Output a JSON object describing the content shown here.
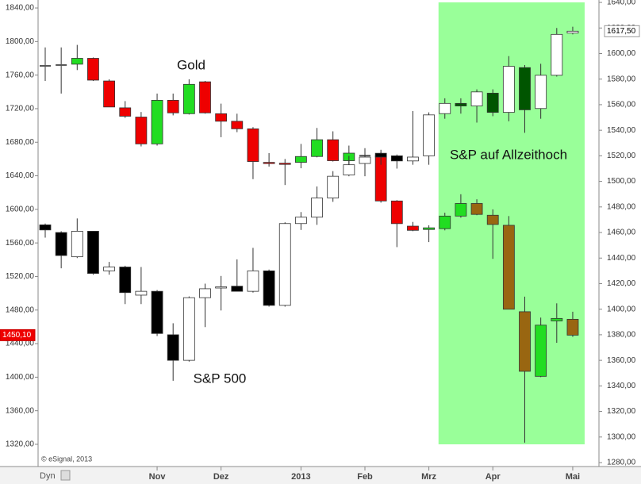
{
  "chart_data": {
    "type": "candlestick",
    "categories": [
      null,
      null,
      null,
      null,
      null,
      null,
      null,
      "Nov",
      null,
      null,
      null,
      "Dez",
      null,
      null,
      null,
      null,
      "2013",
      null,
      null,
      null,
      "Feb",
      null,
      null,
      null,
      "Mrz",
      null,
      null,
      null,
      "Apr",
      null,
      null,
      null,
      null,
      "Mai"
    ],
    "ylim": [
      1293.5,
      1849.5
    ],
    "yticks": [
      {
        "value": 1320,
        "label": "1320,00"
      },
      {
        "value": 1360,
        "label": "1360,00"
      },
      {
        "value": 1400,
        "label": "1400,00"
      },
      {
        "value": 1440,
        "label": "1440,00"
      },
      {
        "value": 1480,
        "label": "1480,00"
      },
      {
        "value": 1520,
        "label": "1520,00"
      },
      {
        "value": 1560,
        "label": "1560,00"
      },
      {
        "value": 1600,
        "label": "1600,00"
      },
      {
        "value": 1640,
        "label": "1640,00"
      },
      {
        "value": 1680,
        "label": "1680,00"
      },
      {
        "value": 1720,
        "label": "1720,00"
      },
      {
        "value": 1760,
        "label": "1760,00"
      },
      {
        "value": 1800,
        "label": "1800,00"
      },
      {
        "value": 1840,
        "label": "1840,00"
      }
    ],
    "y2lim": [
      1276.9,
      1641.9
    ],
    "y2ticks": [
      {
        "value": 1280,
        "label": "1280,00"
      },
      {
        "value": 1300,
        "label": "1300,00"
      },
      {
        "value": 1320,
        "label": "1320,00"
      },
      {
        "value": 1340,
        "label": "1340,00"
      },
      {
        "value": 1360,
        "label": "1360,00"
      },
      {
        "value": 1380,
        "label": "1380,00"
      },
      {
        "value": 1400,
        "label": "1400,00"
      },
      {
        "value": 1420,
        "label": "1420,00"
      },
      {
        "value": 1440,
        "label": "1440,00"
      },
      {
        "value": 1460,
        "label": "1460,00"
      },
      {
        "value": 1480,
        "label": "1480,00"
      },
      {
        "value": 1500,
        "label": "1500,00"
      },
      {
        "value": 1520,
        "label": "1520,00"
      },
      {
        "value": 1540,
        "label": "1540,00"
      },
      {
        "value": 1560,
        "label": "1560,00"
      },
      {
        "value": 1580,
        "label": "1580,00"
      },
      {
        "value": 1600,
        "label": "1600,00"
      },
      {
        "value": 1620,
        "label": "1620,00"
      },
      {
        "value": 1640,
        "label": "1640,00"
      }
    ],
    "highlight": {
      "label": "S&P auf Allzeithoch",
      "color": "#99ff99",
      "from": 25
    },
    "series": [
      {
        "name": "Gold",
        "axis": "y",
        "up_color": "#22dd22",
        "down_color": "#ee0000",
        "highlight_up_color": "#22dd22",
        "highlight_down_color": "#996611",
        "doji_color": "#555555",
        "last_label": "1450,10",
        "last_label_color": "#ee0000",
        "open": [
          1771,
          1772,
          1773,
          1780,
          1753,
          1721,
          1710,
          1678,
          1730,
          1714,
          1752,
          1714,
          1705,
          1696,
          1656,
          1655,
          1656,
          1663,
          1683,
          1658,
          1664,
          1664,
          1610,
          1580,
          1576,
          1577,
          1592,
          1607,
          1593,
          1581,
          1478,
          1401,
          1467,
          1469
        ],
        "high": [
          1793,
          1793,
          1796,
          1781,
          1755,
          1729,
          1716,
          1738,
          1738,
          1755,
          1753,
          1726,
          1714,
          1698,
          1667,
          1660,
          1678,
          1697,
          1693,
          1676,
          1668,
          1671,
          1611,
          1585,
          1581,
          1596,
          1618,
          1612,
          1600,
          1592,
          1496,
          1471,
          1488,
          1478
        ],
        "low": [
          1753,
          1738,
          1766,
          1753,
          1722,
          1709,
          1675,
          1676,
          1712,
          1713,
          1714,
          1686,
          1692,
          1636,
          1651,
          1629,
          1649,
          1662,
          1657,
          1644,
          1651,
          1608,
          1555,
          1574,
          1561,
          1575,
          1590,
          1593,
          1541,
          1481,
          1322,
          1400,
          1441,
          1448
        ],
        "close": [
          1771,
          1772,
          1780,
          1754,
          1722,
          1711,
          1678,
          1730,
          1715,
          1749,
          1715,
          1705,
          1696,
          1657,
          1655,
          1654,
          1663,
          1683,
          1658,
          1667,
          1664,
          1610,
          1583,
          1575,
          1578,
          1592,
          1607,
          1594,
          1582,
          1481,
          1407,
          1462,
          1470,
          1450.1
        ]
      },
      {
        "name": "S&P 500",
        "axis": "y2",
        "up_color": "#ffffff",
        "down_color": "#000000",
        "highlight_up_color": "#ffffff",
        "highlight_down_color": "#005500",
        "doji_color": "#555555",
        "last_label": "1617,50",
        "last_label_color": "#ffffff",
        "open": [
          1466,
          1460,
          1441,
          1461,
          1430,
          1433,
          1411,
          1414,
          1380,
          1360,
          1409,
          1417,
          1418,
          1414,
          1430,
          1403,
          1467,
          1472,
          1487,
          1505,
          1514,
          1522,
          1520,
          1516,
          1520,
          1553,
          1561,
          1559,
          1569,
          1554,
          1589,
          1557,
          1583,
          1616
        ],
        "high": [
          1467,
          1461,
          1471,
          1461,
          1437,
          1434,
          1433,
          1415,
          1389,
          1410,
          1420,
          1426,
          1439,
          1448,
          1431,
          1468,
          1476,
          1496,
          1508,
          1520,
          1526,
          1523,
          1521,
          1555,
          1554,
          1565,
          1565,
          1572,
          1572,
          1598,
          1591,
          1592,
          1620,
          1621
        ],
        "low": [
          1456,
          1432,
          1440,
          1427,
          1427,
          1404,
          1404,
          1379,
          1344,
          1359,
          1386,
          1399,
          1415,
          1413,
          1402,
          1402,
          1462,
          1466,
          1484,
          1504,
          1504,
          1513,
          1510,
          1513,
          1513,
          1549,
          1553,
          1546,
          1551,
          1547,
          1538,
          1549,
          1582,
          1615
        ],
        "close": [
          1462,
          1442,
          1461,
          1428,
          1433,
          1413,
          1414,
          1381,
          1360,
          1409,
          1416,
          1417.5,
          1414,
          1430,
          1403,
          1467,
          1472,
          1487,
          1504,
          1513,
          1519,
          1519,
          1516,
          1519,
          1552,
          1561,
          1559,
          1570,
          1554,
          1590,
          1556,
          1583,
          1615,
          1617.5
        ]
      }
    ]
  },
  "footer": {
    "dyn": "Dyn",
    "copyright": "© eSignal, 2013"
  }
}
